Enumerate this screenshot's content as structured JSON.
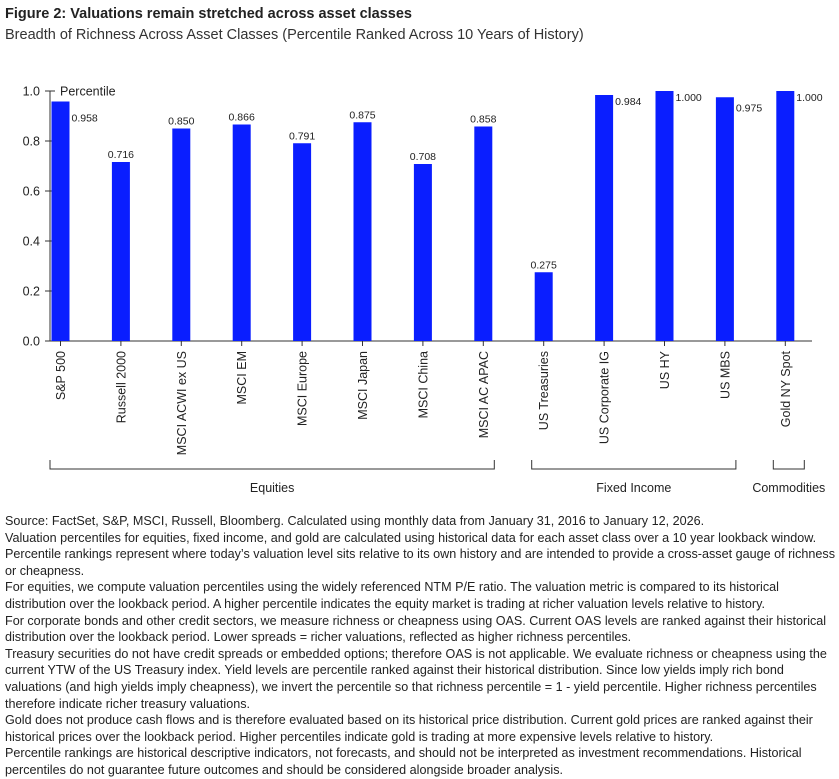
{
  "title": "Figure 2: Valuations remain stretched across asset classes",
  "subtitle": "Breadth of Richness Across Asset Classes (Percentile Ranked Across 10 Years of History)",
  "chart_data": {
    "type": "bar",
    "ylabel": "Percentile",
    "ylim": [
      0,
      1.0
    ],
    "yticks": [
      "0.0",
      "0.2",
      "0.4",
      "0.6",
      "0.8",
      "1.0"
    ],
    "categories": [
      "S&P 500",
      "Russell 2000",
      "MSCI ACWI ex US",
      "MSCI EM",
      "MSCI Europe",
      "MSCI Japan",
      "MSCI China",
      "MSCI AC APAC",
      "US Treasuries",
      "US Corporate IG",
      "US HY",
      "US MBS",
      "Gold NY Spot"
    ],
    "values": [
      0.958,
      0.716,
      0.85,
      0.866,
      0.791,
      0.875,
      0.708,
      0.858,
      0.275,
      0.984,
      1.0,
      0.975,
      1.0
    ],
    "data_labels": [
      "0.958",
      "0.716",
      "0.850",
      "0.866",
      "0.791",
      "0.875",
      "0.708",
      "0.858",
      "0.275",
      "0.984",
      "1.000",
      "0.975",
      "1.000"
    ],
    "groups": [
      {
        "name": "Equities",
        "from": 0,
        "to": 7
      },
      {
        "name": "Fixed Income",
        "from": 8,
        "to": 11
      },
      {
        "name": "Commodities",
        "from": 12,
        "to": 12
      }
    ],
    "bar_color": "#0a1eff",
    "grid": false
  },
  "notes": [
    "Source: FactSet, S&P, MSCI, Russell, Bloomberg. Calculated using monthly data from January 31, 2016 to January 12, 2026.",
    "Valuation percentiles for equities, fixed income, and gold are calculated using historical data for each asset class over a 10 year lookback window. Percentile rankings represent where today’s valuation level sits relative to its own history and are intended to provide a cross-asset gauge of richness or cheapness.",
    "For equities, we compute valuation percentiles using the widely referenced NTM P/E ratio. The valuation metric is compared to its historical distribution over the lookback period. A higher percentile indicates the equity market is trading at richer valuation levels relative to history.",
    "For corporate bonds and other credit sectors, we measure richness or cheapness using OAS. Current OAS levels are ranked against their historical distribution over the lookback period. Lower spreads = richer valuations, reflected as higher richness percentiles.",
    "Treasury securities do not have credit spreads or embedded options; therefore OAS is not applicable. We evaluate richness or cheapness using the current YTW of the US Treasury index. Yield levels are percentile ranked against their historical distribution. Since low yields imply rich bond valuations (and high yields imply cheapness), we invert the percentile so that richness percentile = 1 - yield percentile. Higher richness percentiles therefore indicate richer treasury valuations.",
    "Gold does not produce cash flows and is therefore evaluated based on its historical price distribution. Current gold prices are ranked against their historical prices over the lookback period. Higher percentiles indicate gold is trading at more expensive levels relative to history.",
    "Percentile rankings are historical descriptive indicators, not forecasts, and should not be interpreted as investment recommendations. Historical percentiles do not guarantee future outcomes and should be considered alongside broader analysis."
  ]
}
